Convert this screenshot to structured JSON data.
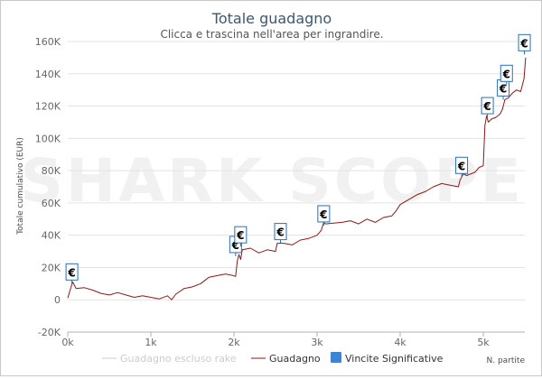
{
  "colors": {
    "series": "#8b1a1a",
    "series_hidden": "#cccccc",
    "marker_fill": "#ffffff",
    "marker_stroke": "#2a6fb0",
    "legend_marker": "#3a85d6",
    "grid": "#e3e3e3",
    "title": "#3e576f",
    "axis_text": "#666666",
    "watermark": "#f1f1f1"
  },
  "watermark": "SHARK SCOPE",
  "chart_data": {
    "type": "line",
    "title": "Totale guadagno",
    "subtitle": "Clicca e trascina nell'area per ingrandire.",
    "ylabel": "Totale cumulativo (EUR)",
    "xlabel": "N. partite",
    "xlim": [
      0,
      5500
    ],
    "ylim": [
      -20000,
      160000
    ],
    "x_ticks": [
      0,
      1000,
      2000,
      3000,
      4000,
      5000
    ],
    "x_tick_labels": [
      "0k",
      "1k",
      "2k",
      "3k",
      "4k",
      "5k"
    ],
    "y_ticks": [
      -20000,
      0,
      20000,
      40000,
      60000,
      80000,
      100000,
      120000,
      140000,
      160000
    ],
    "y_tick_labels": [
      "-20K",
      "0",
      "20K",
      "40K",
      "60K",
      "80K",
      "100K",
      "120K",
      "140K",
      "160K"
    ],
    "grid": true,
    "legend_position": "bottom",
    "legend": [
      {
        "label": "Guadagno escluso rake",
        "type": "line",
        "visible": false
      },
      {
        "label": "Guadagno",
        "type": "line",
        "visible": true
      },
      {
        "label": "Vincite Significative",
        "type": "marker",
        "visible": true
      }
    ],
    "series": [
      {
        "name": "Guadagno",
        "x": [
          0,
          40,
          60,
          100,
          200,
          300,
          400,
          500,
          600,
          700,
          800,
          900,
          1000,
          1100,
          1200,
          1250,
          1300,
          1400,
          1500,
          1600,
          1700,
          1800,
          1900,
          1990,
          2020,
          2040,
          2060,
          2080,
          2100,
          2200,
          2300,
          2400,
          2500,
          2520,
          2600,
          2700,
          2800,
          2900,
          3000,
          3050,
          3080,
          3100,
          3200,
          3300,
          3400,
          3500,
          3600,
          3700,
          3800,
          3900,
          3950,
          4000,
          4100,
          4200,
          4300,
          4400,
          4500,
          4600,
          4700,
          4720,
          4760,
          4800,
          4900,
          4950,
          5000,
          5020,
          5040,
          5060,
          5100,
          5150,
          5200,
          5230,
          5260,
          5300,
          5350,
          5400,
          5450,
          5490,
          5510
        ],
        "y": [
          1000,
          8000,
          11000,
          7000,
          7500,
          6000,
          4000,
          3000,
          4500,
          3000,
          1500,
          2500,
          1500,
          500,
          2500,
          0,
          3500,
          7000,
          8000,
          10000,
          14000,
          15000,
          16000,
          15000,
          14500,
          24000,
          28000,
          25000,
          31000,
          32000,
          29000,
          31000,
          30000,
          35000,
          35000,
          34000,
          37000,
          38000,
          40000,
          43000,
          48000,
          47000,
          47500,
          48000,
          49000,
          47000,
          50000,
          48000,
          51000,
          52000,
          55000,
          59000,
          62000,
          65000,
          67000,
          70000,
          72000,
          71000,
          70000,
          74000,
          78000,
          77000,
          79000,
          82000,
          83000,
          108000,
          114000,
          110000,
          112000,
          113000,
          115000,
          118000,
          124000,
          125000,
          128000,
          130000,
          129000,
          137000,
          150000
        ]
      }
    ],
    "significant_wins": [
      {
        "x": 50,
        "y": 10000,
        "label": "€"
      },
      {
        "x": 2020,
        "y": 27000,
        "label": "€"
      },
      {
        "x": 2080,
        "y": 33000,
        "label": "€"
      },
      {
        "x": 2560,
        "y": 35000,
        "label": "€"
      },
      {
        "x": 3080,
        "y": 46000,
        "label": "€"
      },
      {
        "x": 4740,
        "y": 76000,
        "label": "€"
      },
      {
        "x": 5050,
        "y": 113000,
        "label": "€"
      },
      {
        "x": 5240,
        "y": 124000,
        "label": "€"
      },
      {
        "x": 5280,
        "y": 133000,
        "label": "€"
      },
      {
        "x": 5495,
        "y": 152000,
        "label": "€"
      }
    ]
  }
}
